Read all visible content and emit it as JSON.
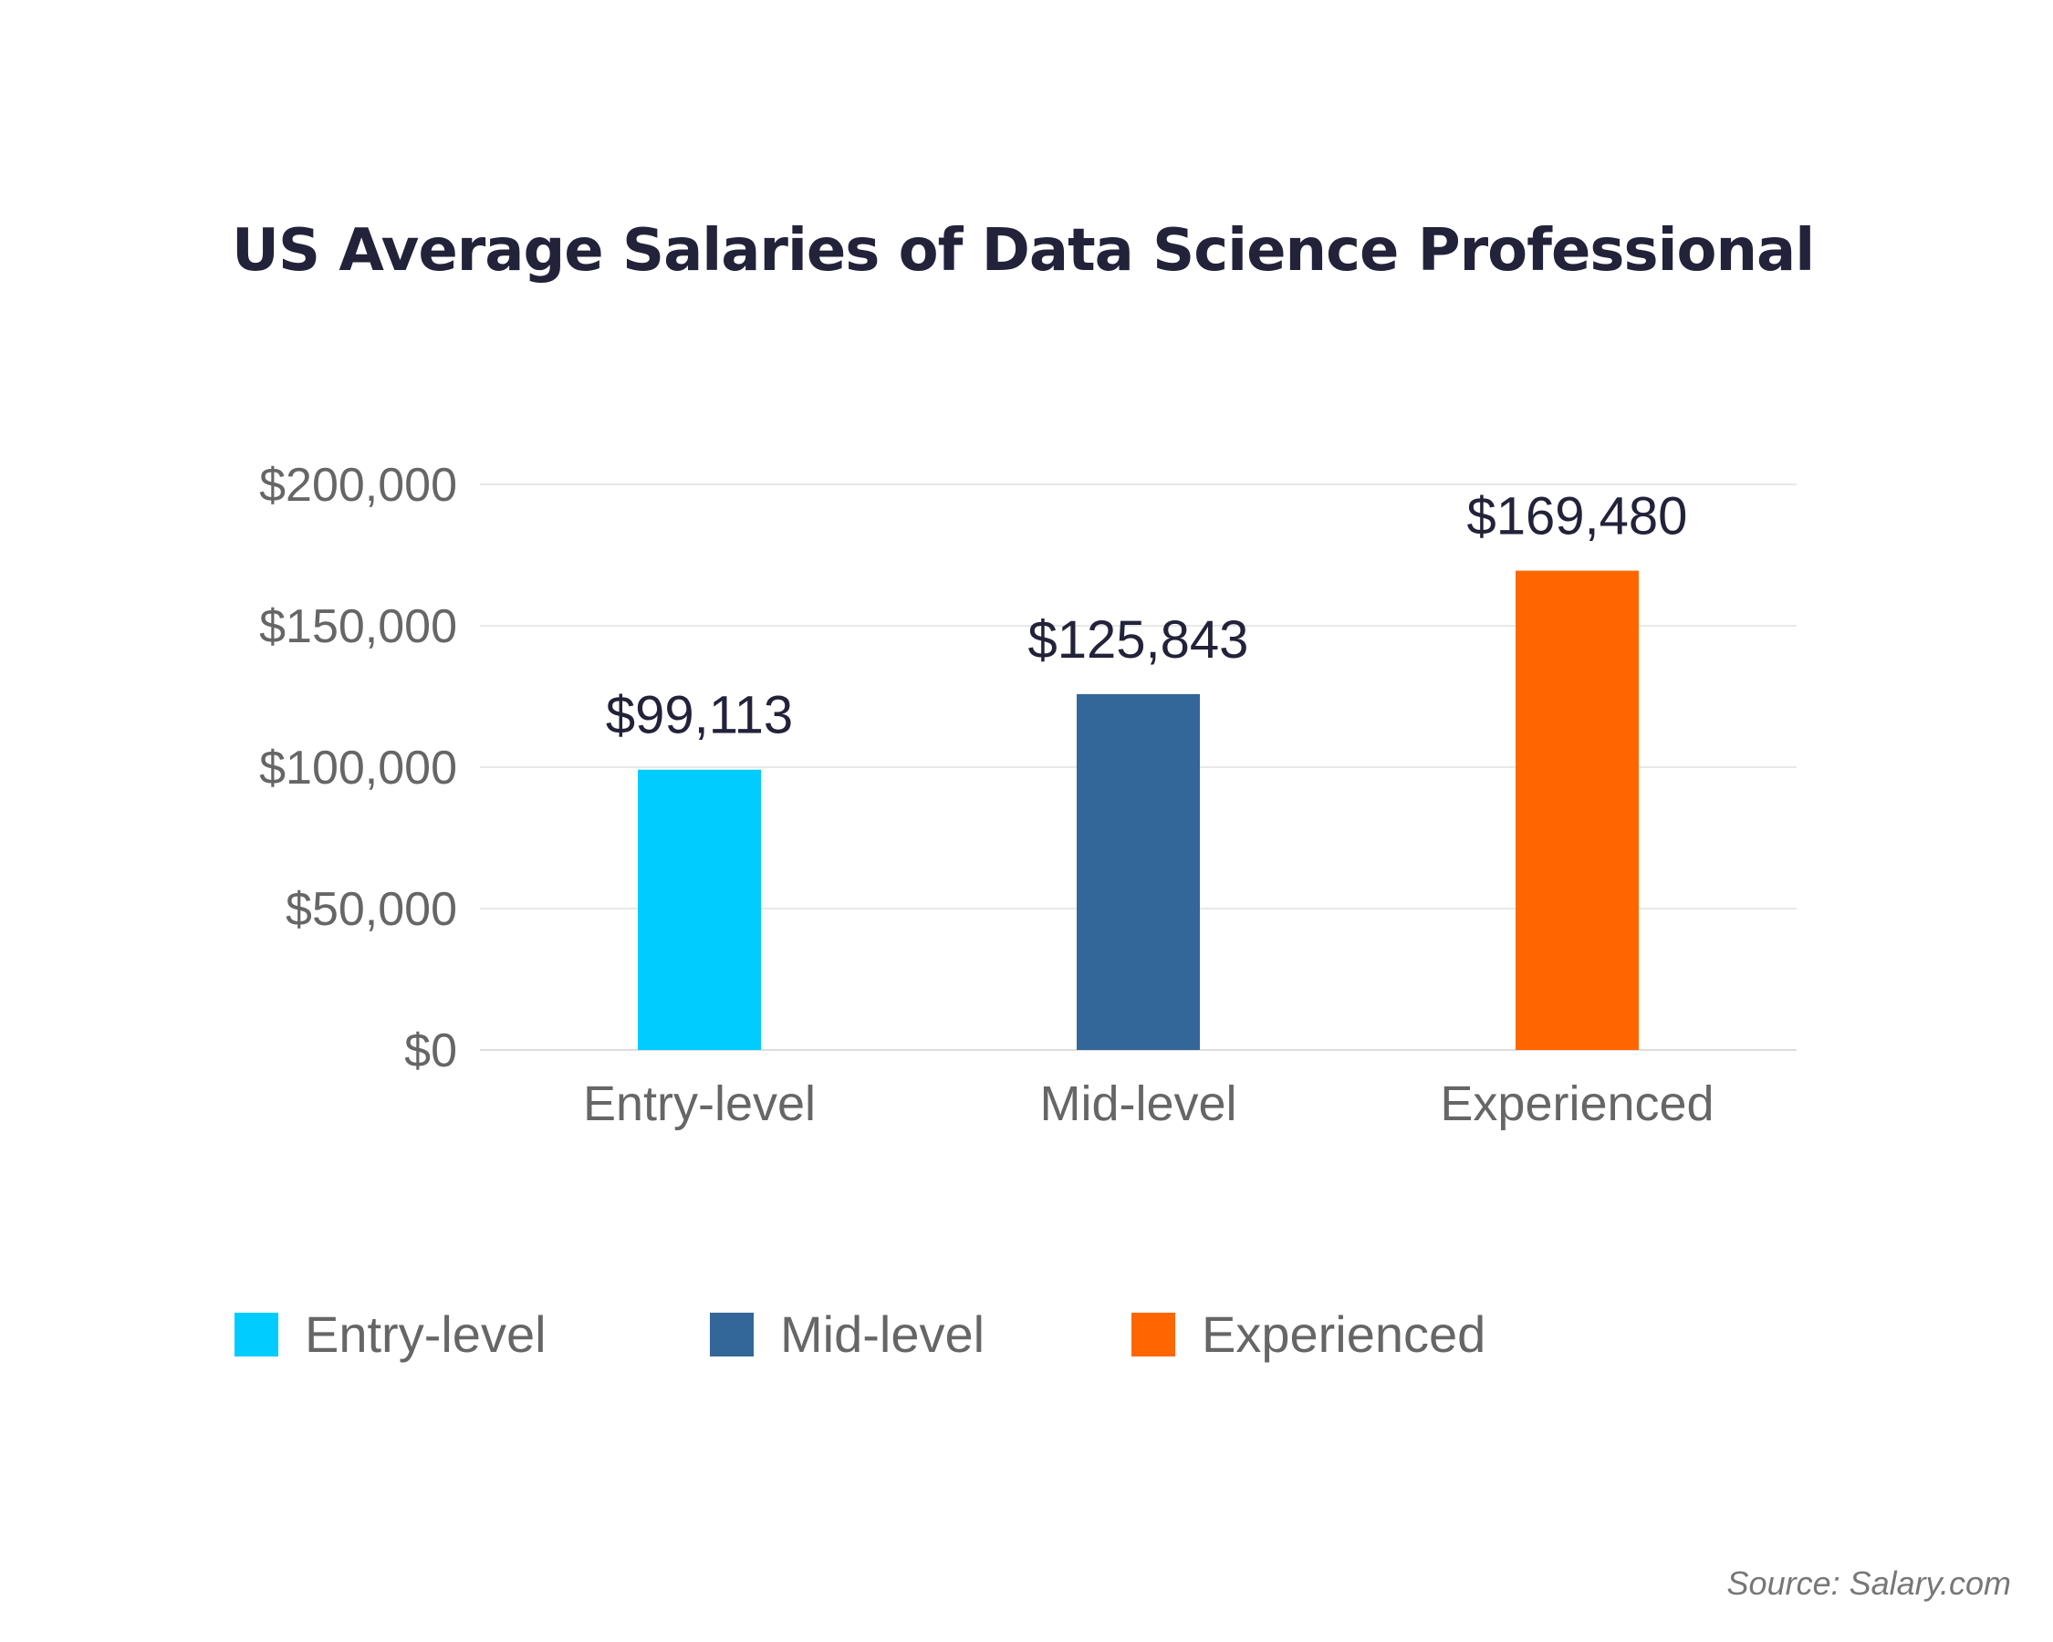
{
  "chart_data": {
    "type": "bar",
    "title": "US Average Salaries of Data Science Professional",
    "categories": [
      "Entry-level",
      "Mid-level",
      "Experienced"
    ],
    "values": [
      99113,
      125843,
      169480
    ],
    "data_labels": [
      "$99,113",
      "$125,843",
      "$169,480"
    ],
    "colors": [
      "#00CCFF",
      "#336699",
      "#FF6600"
    ],
    "ylim": [
      0,
      200000
    ],
    "yticks": [
      0,
      50000,
      100000,
      150000,
      200000
    ],
    "ytick_labels": [
      "$0",
      "$50,000",
      "$100,000",
      "$150,000",
      "$200,000"
    ],
    "grid": true,
    "legend": {
      "placement": "bottom-left",
      "entries": [
        "Entry-level",
        "Mid-level",
        "Experienced"
      ]
    },
    "source": "Source: Salary.com"
  }
}
